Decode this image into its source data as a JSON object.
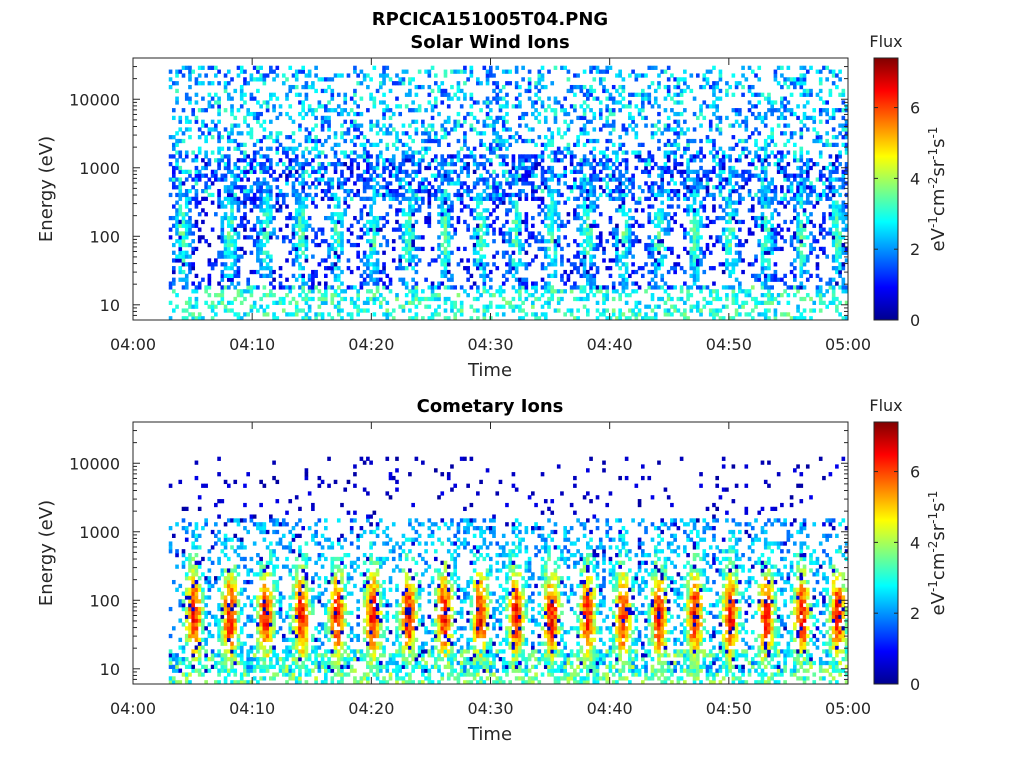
{
  "figure_title": "RPCICA151005T04.PNG",
  "chart_data": [
    {
      "type": "heatmap",
      "title": "Solar Wind Ions",
      "xlabel": "Time",
      "ylabel": "Energy (eV)",
      "x_ticks": [
        "04:00",
        "04:10",
        "04:20",
        "04:30",
        "04:40",
        "04:50",
        "05:00"
      ],
      "x_range": [
        "04:00",
        "05:00"
      ],
      "data_start": "04:03",
      "y_scale": "log",
      "y_ticks": [
        "10",
        "100",
        "1000",
        "10000"
      ],
      "y_range": [
        6,
        40000
      ],
      "colorbar": {
        "label": "Flux",
        "unit": "eV-1cm-2sr-1s-1",
        "range": [
          0,
          7.4
        ],
        "ticks": [
          "0",
          "2",
          "4",
          "6"
        ],
        "colormap": "jet"
      },
      "burst_times": [
        "04:04",
        "04:08",
        "04:11",
        "04:14",
        "04:17",
        "04:20",
        "04:23",
        "04:26",
        "04:29",
        "04:32",
        "04:35",
        "04:38",
        "04:41",
        "04:44",
        "04:47",
        "04:50",
        "04:53",
        "04:56",
        "04:59"
      ],
      "burst_flux_peak": 3.0,
      "burst_energy_range": [
        15,
        1500
      ],
      "sparse_flux_typical": 2.2,
      "sparse_energy_range": [
        300,
        30000
      ]
    },
    {
      "type": "heatmap",
      "title": "Cometary Ions",
      "xlabel": "Time",
      "ylabel": "Energy (eV)",
      "x_ticks": [
        "04:00",
        "04:10",
        "04:20",
        "04:30",
        "04:40",
        "04:50",
        "05:00"
      ],
      "x_range": [
        "04:00",
        "05:00"
      ],
      "data_start": "04:03",
      "y_scale": "log",
      "y_ticks": [
        "10",
        "100",
        "1000",
        "10000"
      ],
      "y_range": [
        6,
        40000
      ],
      "colorbar": {
        "label": "Flux",
        "unit": "eV-1cm-2sr-1s-1",
        "range": [
          0,
          7.4
        ],
        "ticks": [
          "0",
          "2",
          "4",
          "6"
        ],
        "colormap": "jet"
      },
      "burst_times": [
        "04:05",
        "04:08",
        "04:11",
        "04:14",
        "04:17",
        "04:20",
        "04:23",
        "04:26",
        "04:29",
        "04:32",
        "04:35",
        "04:38",
        "04:41",
        "04:44",
        "04:47",
        "04:50",
        "04:53",
        "04:56",
        "04:59"
      ],
      "burst_flux_peak": 5.8,
      "burst_energy_range": [
        8,
        1500
      ],
      "sparse_flux_typical": 0.6,
      "sparse_energy_range": [
        1000,
        12000
      ]
    }
  ]
}
